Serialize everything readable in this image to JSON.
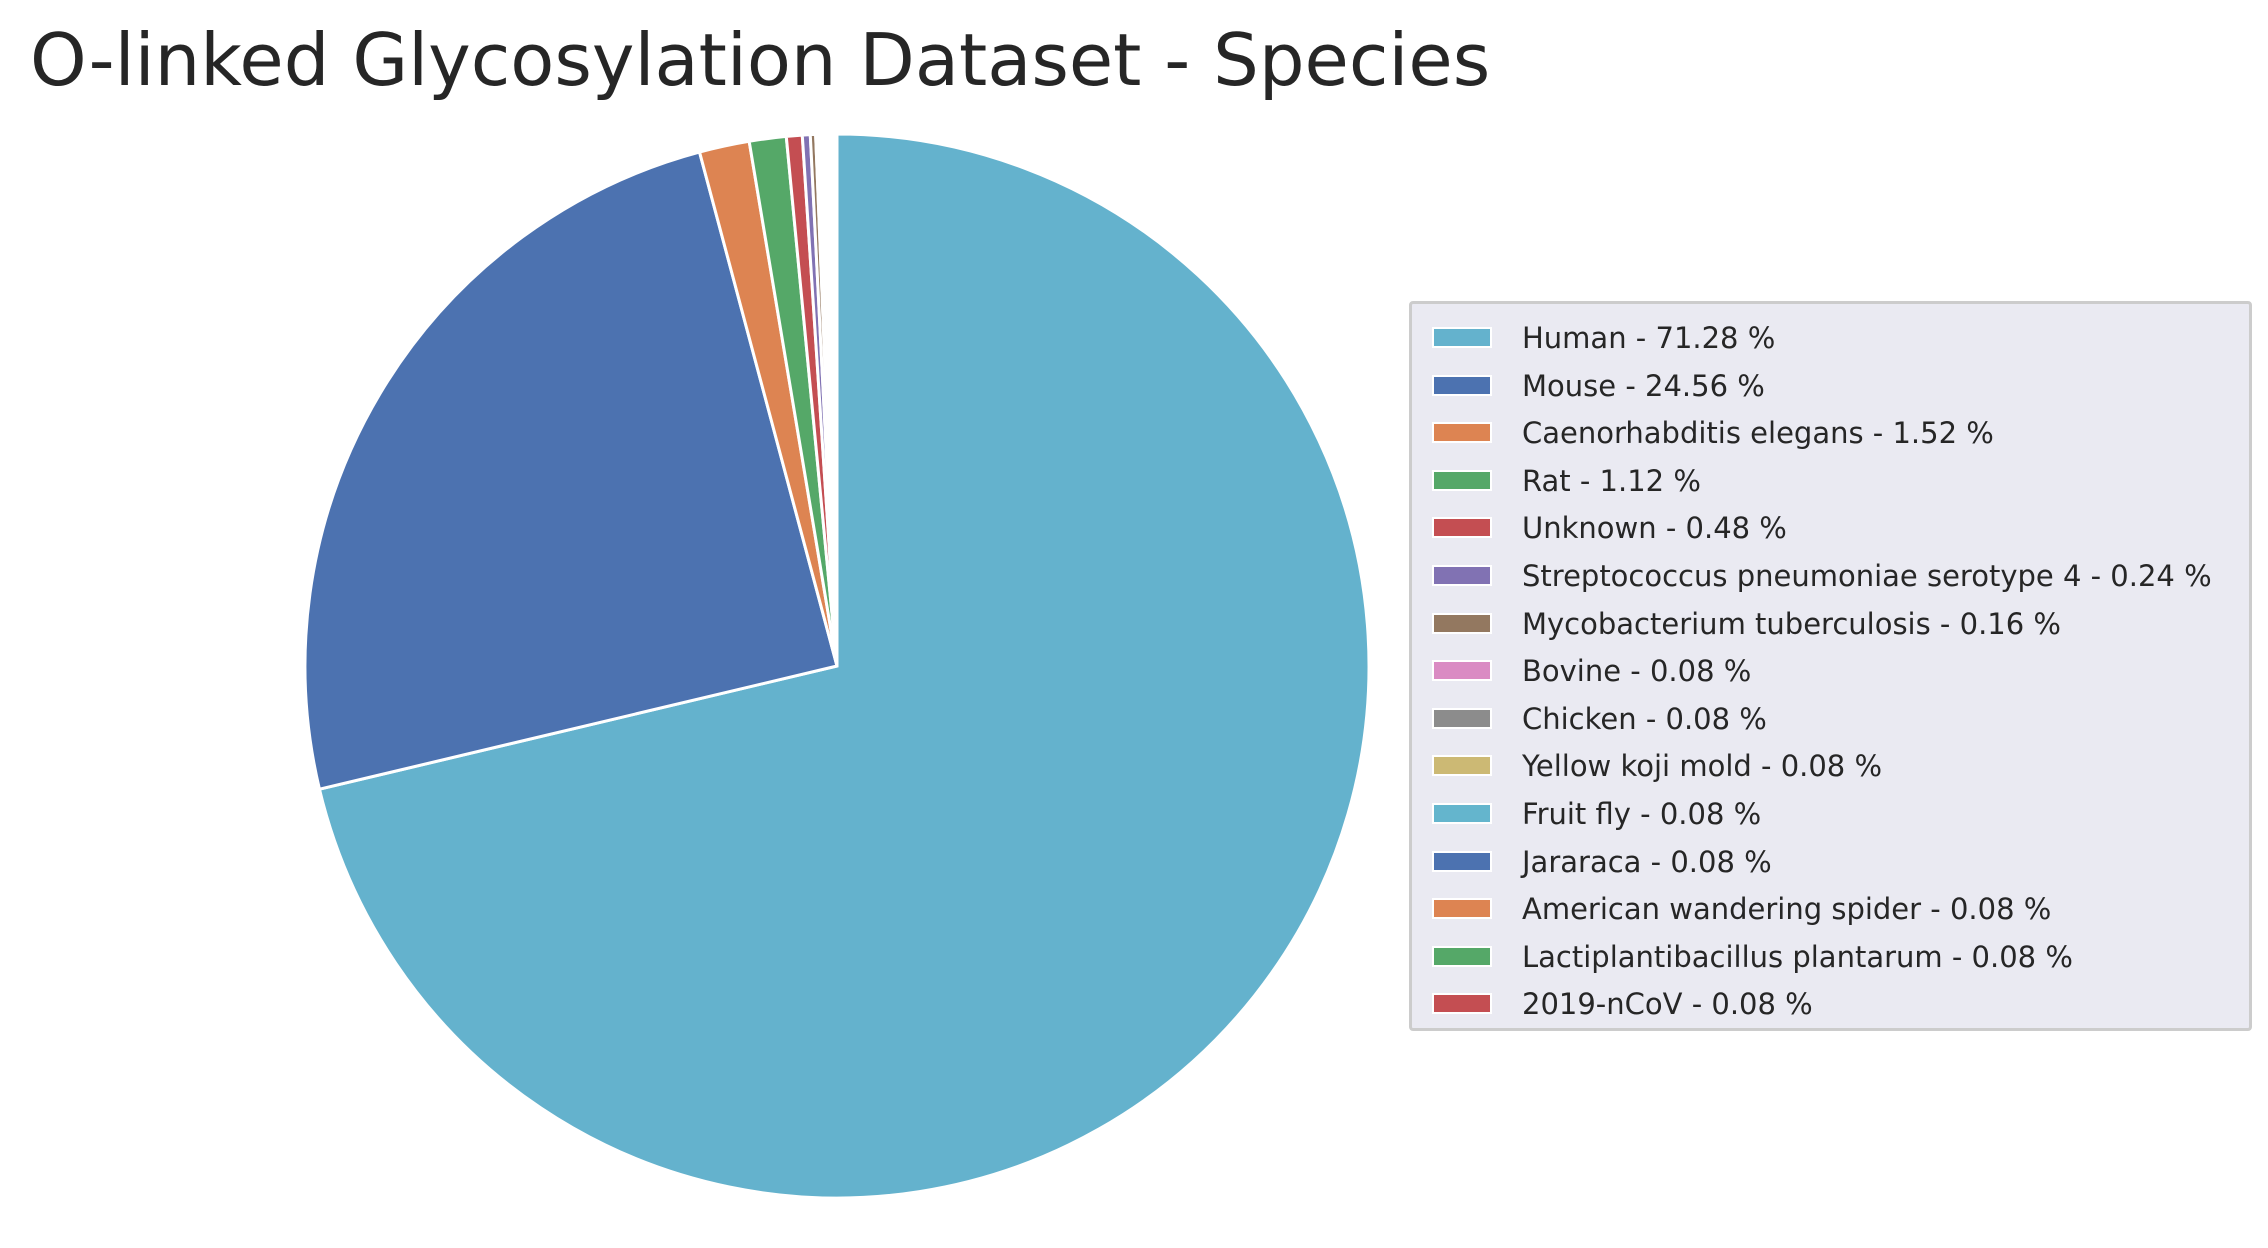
{
  "chart_data": {
    "type": "pie",
    "title": "O-linked Glycosylation Dataset - Species",
    "slices": [
      {
        "label": "Human - 71.28 %",
        "value": 71.28,
        "color": "#64b2cd"
      },
      {
        "label": "Mouse - 24.56 %",
        "value": 24.56,
        "color": "#4c72b0"
      },
      {
        "label": "Caenorhabditis elegans - 1.52 %",
        "value": 1.52,
        "color": "#dd8452"
      },
      {
        "label": "Rat - 1.12 %",
        "value": 1.12,
        "color": "#55a868"
      },
      {
        "label": "Unknown - 0.48 %",
        "value": 0.48,
        "color": "#c44e52"
      },
      {
        "label": "Streptococcus pneumoniae serotype 4  - 0.24 %",
        "value": 0.24,
        "color": "#8172b3"
      },
      {
        "label": "Mycobacterium tuberculosis  - 0.16 %",
        "value": 0.16,
        "color": "#937860"
      },
      {
        "label": "Bovine - 0.08 %",
        "value": 0.08,
        "color": "#da8bc3"
      },
      {
        "label": "Chicken - 0.08 %",
        "value": 0.08,
        "color": "#8c8c8c"
      },
      {
        "label": "Yellow koji mold - 0.08 %",
        "value": 0.08,
        "color": "#ccb974"
      },
      {
        "label": "Fruit fly - 0.08 %",
        "value": 0.08,
        "color": "#64b5cd"
      },
      {
        "label": "Jararaca - 0.08 %",
        "value": 0.08,
        "color": "#4c72b0"
      },
      {
        "label": "American wandering spider - 0.08 %",
        "value": 0.08,
        "color": "#dd8452"
      },
      {
        "label": "Lactiplantibacillus plantarum - 0.08 %",
        "value": 0.08,
        "color": "#55a868"
      },
      {
        "label": "2019-nCoV - 0.08 %",
        "value": 0.08,
        "color": "#c44e52"
      }
    ],
    "start_angle": "top",
    "direction": "clockwise",
    "legend_position": "right"
  }
}
